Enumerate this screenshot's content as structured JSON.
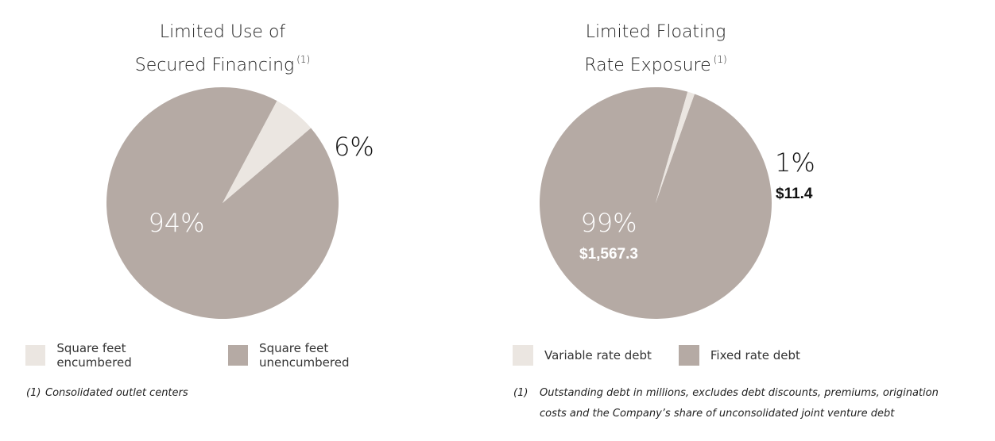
{
  "colors": {
    "major": "#b5aaa4",
    "minor": "#ebe6e1",
    "label_dark": "#111111",
    "label_light": "#ffffff"
  },
  "chart_data": [
    {
      "type": "pie",
      "title": "Limited Use of Secured Financing",
      "title_lines": [
        "Limited Use of",
        "Secured Financing"
      ],
      "title_note": "(1)",
      "slices": [
        {
          "label": "Square feet encumbered",
          "value": 6,
          "display": "6%",
          "sub": ""
        },
        {
          "label": "Square feet unencumbered",
          "value": 94,
          "display": "94%",
          "sub": ""
        }
      ],
      "legend": [
        "Square feet encumbered",
        "Square feet unencumbered"
      ],
      "footnote_num": "(1)",
      "footnote": [
        "Consolidated outlet centers"
      ]
    },
    {
      "type": "pie",
      "title": "Limited Floating Rate Exposure",
      "title_lines": [
        "Limited Floating",
        "Rate Exposure"
      ],
      "title_note": "(1)",
      "slices": [
        {
          "label": "Variable rate debt",
          "value": 1,
          "display": "1%",
          "sub": "$11.4"
        },
        {
          "label": "Fixed rate debt",
          "value": 99,
          "display": "99%",
          "sub": "$1,567.3"
        }
      ],
      "legend": [
        "Variable rate debt",
        "Fixed rate debt"
      ],
      "footnote_num": "(1)",
      "footnote": [
        "Outstanding debt in millions, excludes debt discounts, premiums, origination",
        "costs and the Company’s share of unconsolidated joint venture debt"
      ]
    }
  ]
}
